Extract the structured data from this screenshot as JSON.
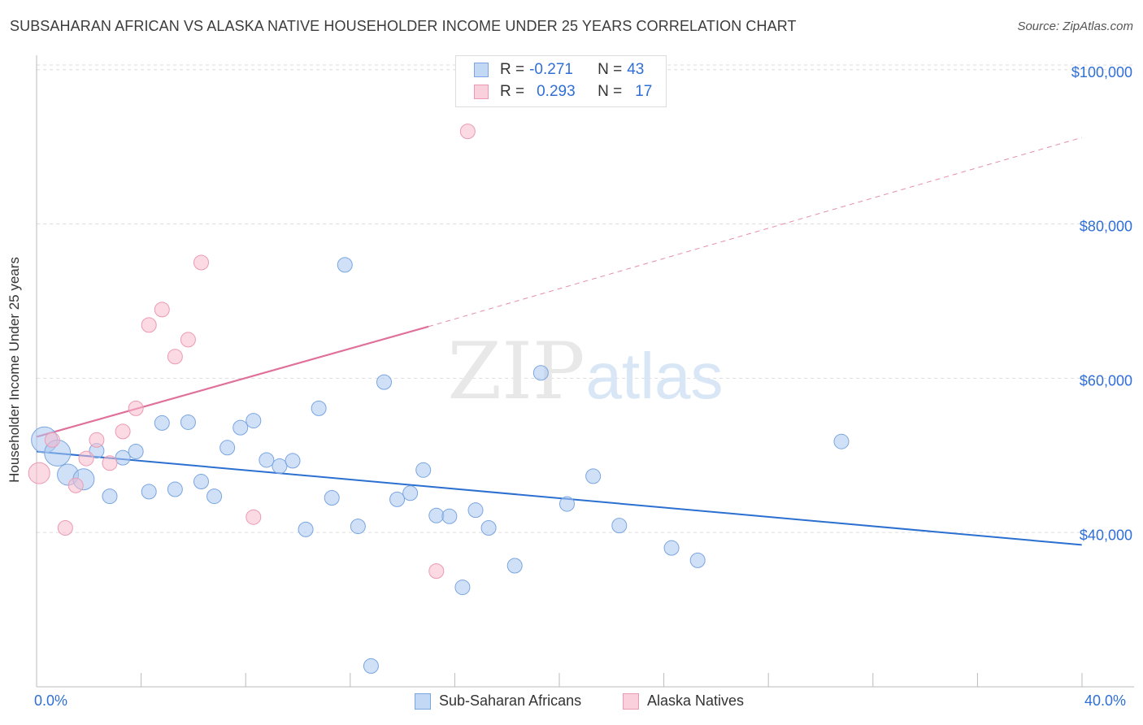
{
  "header": {
    "title": "SUBSAHARAN AFRICAN VS ALASKA NATIVE HOUSEHOLDER INCOME UNDER 25 YEARS CORRELATION CHART",
    "source": "Source: ZipAtlas.com"
  },
  "watermark": {
    "zip": "ZIP",
    "atlas": "atlas"
  },
  "legend": {
    "r_label": "R =",
    "n_label": "N =",
    "rows": [
      {
        "r": "-0.271",
        "n": "43"
      },
      {
        "r": "0.293",
        "n": "17"
      }
    ]
  },
  "bottom_legend": [
    "Sub-Saharan Africans",
    "Alaska Natives"
  ],
  "colors": {
    "blue_fill": "#aac8f0",
    "blue_stroke": "#7aa5e0",
    "blue_line": "#2b6fd0",
    "pink_fill": "#f7bccd",
    "pink_stroke": "#ec9ab2",
    "pink_line": "#e0709a",
    "axis_text": "#2f6fd6",
    "grid": "#dddddd"
  },
  "chart_data": {
    "type": "scatter",
    "title": "SUBSAHARAN AFRICAN VS ALASKA NATIVE HOUSEHOLDER INCOME UNDER 25 YEARS CORRELATION CHART",
    "ylabel": "Householder Income Under 25 years",
    "xlabel": "",
    "x_unit": "percent",
    "xlim": [
      0,
      42
    ],
    "ylim": [
      20000,
      102500
    ],
    "x_tick_labels": [
      "0.0%",
      "40.0%"
    ],
    "y_ticks": [
      40000,
      60000,
      80000,
      100000
    ],
    "y_tick_labels": [
      "$40,000",
      "$60,000",
      "$80,000",
      "$100,000"
    ],
    "grid": true,
    "legend_position": "top-center",
    "series": [
      {
        "name": "Sub-Saharan Africans",
        "color": "#aac8f0",
        "trend": {
          "x": [
            0,
            40
          ],
          "y": [
            50500,
            38400
          ],
          "style": "solid"
        },
        "points": [
          {
            "x": 0.3,
            "y": 52000,
            "s": 3
          },
          {
            "x": 0.8,
            "y": 50300,
            "s": 3
          },
          {
            "x": 1.2,
            "y": 47500,
            "s": 2
          },
          {
            "x": 1.8,
            "y": 46900,
            "s": 2
          },
          {
            "x": 2.3,
            "y": 50600,
            "s": 1
          },
          {
            "x": 2.8,
            "y": 44700,
            "s": 1
          },
          {
            "x": 3.3,
            "y": 49700,
            "s": 1
          },
          {
            "x": 3.8,
            "y": 50500,
            "s": 1
          },
          {
            "x": 4.3,
            "y": 45300,
            "s": 1
          },
          {
            "x": 4.8,
            "y": 54200,
            "s": 1
          },
          {
            "x": 5.3,
            "y": 45600,
            "s": 1
          },
          {
            "x": 5.8,
            "y": 54300,
            "s": 1
          },
          {
            "x": 6.3,
            "y": 46600,
            "s": 1
          },
          {
            "x": 6.8,
            "y": 44700,
            "s": 1
          },
          {
            "x": 7.3,
            "y": 51000,
            "s": 1
          },
          {
            "x": 7.8,
            "y": 53600,
            "s": 1
          },
          {
            "x": 8.3,
            "y": 54500,
            "s": 1
          },
          {
            "x": 8.8,
            "y": 49400,
            "s": 1
          },
          {
            "x": 9.3,
            "y": 48600,
            "s": 1
          },
          {
            "x": 9.8,
            "y": 49300,
            "s": 1
          },
          {
            "x": 10.3,
            "y": 40400,
            "s": 1
          },
          {
            "x": 10.8,
            "y": 56100,
            "s": 1
          },
          {
            "x": 11.3,
            "y": 44500,
            "s": 1
          },
          {
            "x": 11.8,
            "y": 74700,
            "s": 1
          },
          {
            "x": 12.3,
            "y": 40800,
            "s": 1
          },
          {
            "x": 12.8,
            "y": 22700,
            "s": 1
          },
          {
            "x": 13.3,
            "y": 59500,
            "s": 1
          },
          {
            "x": 13.8,
            "y": 44300,
            "s": 1
          },
          {
            "x": 14.3,
            "y": 45100,
            "s": 1
          },
          {
            "x": 14.8,
            "y": 48100,
            "s": 1
          },
          {
            "x": 15.3,
            "y": 42200,
            "s": 1
          },
          {
            "x": 15.8,
            "y": 42100,
            "s": 1
          },
          {
            "x": 16.3,
            "y": 32900,
            "s": 1
          },
          {
            "x": 16.8,
            "y": 42900,
            "s": 1
          },
          {
            "x": 17.3,
            "y": 40600,
            "s": 1
          },
          {
            "x": 18.3,
            "y": 35700,
            "s": 1
          },
          {
            "x": 19.3,
            "y": 60700,
            "s": 1
          },
          {
            "x": 20.3,
            "y": 43700,
            "s": 1
          },
          {
            "x": 21.3,
            "y": 47300,
            "s": 1
          },
          {
            "x": 22.3,
            "y": 40900,
            "s": 1
          },
          {
            "x": 24.3,
            "y": 38000,
            "s": 1
          },
          {
            "x": 25.3,
            "y": 36400,
            "s": 1
          },
          {
            "x": 30.8,
            "y": 51800,
            "s": 1
          }
        ]
      },
      {
        "name": "Alaska Natives",
        "color": "#f7bccd",
        "trend": {
          "x": [
            0,
            15
          ],
          "y": [
            52400,
            66700
          ],
          "style": "solid",
          "dashed_to": [
            40,
            91200
          ]
        },
        "points": [
          {
            "x": 0.1,
            "y": 47700,
            "s": 2
          },
          {
            "x": 0.6,
            "y": 52000,
            "s": 1
          },
          {
            "x": 1.1,
            "y": 40600,
            "s": 1
          },
          {
            "x": 1.5,
            "y": 46100,
            "s": 1
          },
          {
            "x": 1.9,
            "y": 49600,
            "s": 1
          },
          {
            "x": 2.3,
            "y": 52000,
            "s": 1
          },
          {
            "x": 2.8,
            "y": 49000,
            "s": 1
          },
          {
            "x": 3.3,
            "y": 53100,
            "s": 1
          },
          {
            "x": 3.8,
            "y": 56100,
            "s": 1
          },
          {
            "x": 4.3,
            "y": 66900,
            "s": 1
          },
          {
            "x": 4.8,
            "y": 68900,
            "s": 1
          },
          {
            "x": 5.3,
            "y": 62800,
            "s": 1
          },
          {
            "x": 5.8,
            "y": 65000,
            "s": 1
          },
          {
            "x": 6.3,
            "y": 75000,
            "s": 1
          },
          {
            "x": 8.3,
            "y": 42000,
            "s": 1
          },
          {
            "x": 15.3,
            "y": 35000,
            "s": 1
          },
          {
            "x": 16.5,
            "y": 92000,
            "s": 1
          }
        ]
      }
    ]
  }
}
